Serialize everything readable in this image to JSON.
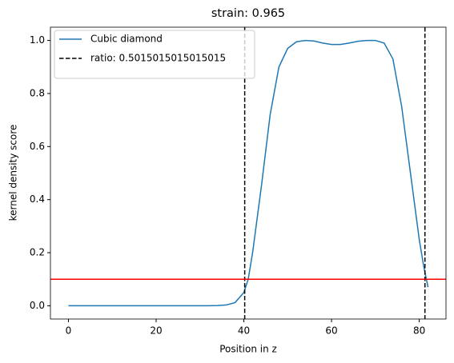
{
  "chart_data": {
    "type": "line",
    "title": "strain: 0.965",
    "xlabel": "Position in z",
    "ylabel": "kernel density score",
    "x": [
      0,
      4,
      8,
      12,
      16,
      20,
      24,
      28,
      32,
      34,
      36,
      38,
      40,
      41,
      42,
      44,
      46,
      48,
      50,
      52,
      54,
      56,
      58,
      60,
      62,
      64,
      66,
      68,
      70,
      72,
      74,
      76,
      78,
      80,
      81,
      82
    ],
    "series": [
      {
        "name": "Cubic diamond",
        "color": "#1f77b4",
        "values": [
          0,
          0,
          0,
          0,
          0,
          0,
          0,
          0,
          0,
          0.001,
          0.003,
          0.012,
          0.05,
          0.1,
          0.2,
          0.45,
          0.72,
          0.9,
          0.97,
          0.995,
          1.0,
          0.998,
          0.99,
          0.985,
          0.985,
          0.99,
          0.997,
          1.0,
          1.0,
          0.99,
          0.93,
          0.75,
          0.5,
          0.25,
          0.15,
          0.07
        ]
      }
    ],
    "vlines": {
      "name": "ratio: 0.5015015015015015",
      "color": "#000000",
      "x": [
        40.2,
        81.3
      ]
    },
    "hlines": [
      {
        "y": 0.1,
        "color": "#ff0000"
      }
    ],
    "xlim": [
      -4.1,
      86.1
    ],
    "ylim": [
      -0.05,
      1.05
    ],
    "xticks": [
      0,
      20,
      40,
      60,
      80
    ],
    "yticks": [
      {
        "value": 0,
        "label": "0.0"
      },
      {
        "value": 0.2,
        "label": "0.2"
      },
      {
        "value": 0.4,
        "label": "0.4"
      },
      {
        "value": 0.6,
        "label": "0.6"
      },
      {
        "value": 0.8,
        "label": "0.8"
      },
      {
        "value": 1.0,
        "label": "1.0"
      }
    ],
    "grid": false,
    "legend": "upper left"
  }
}
